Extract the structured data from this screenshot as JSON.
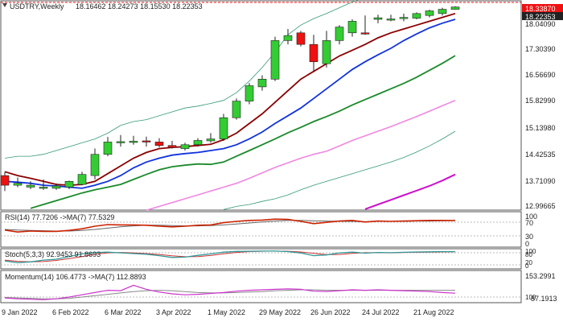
{
  "header": {
    "symbol": "USDTRY,Weekly",
    "ohlc": "18.16462 18.24273 18.15530 18.22353",
    "marker_icon": "triangle-down-icon"
  },
  "price_axis": {
    "ticks": [
      "18.04090",
      "17.30390",
      "16.56690",
      "15.82990",
      "15.13980",
      "14.42535",
      "13.71090",
      "12.99665"
    ],
    "current_price_label": "18.22353",
    "high_level_label": "18.33870"
  },
  "x_axis": {
    "labels": [
      "9 Jan 2022",
      "6 Feb 2022",
      "6 Mar 2022",
      "3 Apr 2022",
      "1 May 2022",
      "29 May 2022",
      "26 Jun 2022",
      "24 Jul 2022",
      "21 Aug 2022"
    ]
  },
  "indicators": {
    "rsi": {
      "label": "RSI(14) 77.7206 ->MA(7) 77.5329",
      "scale": [
        "100",
        "70",
        "30",
        "0"
      ]
    },
    "stoch": {
      "label": "Stoch(5,3,3) 92.9453 91.8693",
      "scale": [
        "100",
        "80",
        "20",
        "0"
      ]
    },
    "momentum": {
      "label": "Momentum(14) 106.4773 ->MA(7) 112.8893",
      "scale": [
        "153.2991",
        "100",
        "87.1913"
      ]
    }
  },
  "colors": {
    "bull": "#33cc33",
    "bear": "#ee1111",
    "wick": "#222222",
    "ma_dark_red": "#8b0000",
    "ma_blue": "#1133dd",
    "ma_green": "#1a8a2a",
    "ma_pink": "#f088e0",
    "ma_magenta": "#cc10cc",
    "band": "#339977",
    "rsi_line": "#cc2200",
    "rsi_ma": "#666666",
    "stoch_k": "#339999",
    "stoch_d": "#cc3333",
    "momentum": "#cc33cc",
    "momentum_ma": "#888888"
  },
  "chart_data": {
    "type": "candlestick",
    "x": [
      "2022-01-02",
      "2022-01-09",
      "2022-01-16",
      "2022-01-23",
      "2022-01-30",
      "2022-02-06",
      "2022-02-13",
      "2022-02-20",
      "2022-02-27",
      "2022-03-06",
      "2022-03-13",
      "2022-03-20",
      "2022-03-27",
      "2022-04-03",
      "2022-04-10",
      "2022-04-17",
      "2022-04-24",
      "2022-05-01",
      "2022-05-08",
      "2022-05-15",
      "2022-05-22",
      "2022-05-29",
      "2022-06-05",
      "2022-06-12",
      "2022-06-19",
      "2022-06-26",
      "2022-07-03",
      "2022-07-10",
      "2022-07-17",
      "2022-07-24",
      "2022-07-31",
      "2022-08-07",
      "2022-08-14",
      "2022-08-21",
      "2022-08-28",
      "2022-09-04"
    ],
    "open": [
      13.85,
      13.6,
      13.55,
      13.55,
      13.52,
      13.55,
      13.62,
      13.85,
      14.4,
      14.7,
      14.72,
      14.75,
      14.72,
      14.63,
      14.55,
      14.65,
      14.75,
      14.8,
      15.35,
      15.78,
      16.15,
      16.35,
      17.35,
      17.55,
      17.25,
      16.75,
      17.35,
      17.55,
      17.55,
      17.9,
      17.9,
      17.92,
      17.93,
      18.0,
      18.05,
      18.16
    ],
    "high": [
      13.95,
      13.8,
      13.7,
      13.75,
      13.65,
      13.72,
      13.95,
      14.55,
      14.85,
      14.9,
      14.88,
      14.86,
      14.82,
      14.75,
      14.7,
      14.82,
      14.95,
      15.45,
      15.85,
      16.25,
      16.45,
      17.45,
      17.65,
      17.6,
      17.5,
      17.6,
      17.75,
      17.9,
      18.0,
      18.02,
      18.02,
      18.05,
      18.08,
      18.15,
      18.2,
      18.24
    ],
    "low": [
      13.45,
      13.55,
      13.5,
      13.48,
      13.48,
      13.5,
      13.6,
      13.75,
      14.35,
      14.6,
      14.65,
      14.6,
      14.58,
      14.55,
      14.5,
      14.6,
      14.7,
      14.75,
      15.3,
      15.7,
      16.05,
      16.3,
      17.25,
      17.2,
      16.55,
      16.65,
      17.25,
      17.45,
      17.5,
      17.8,
      17.85,
      17.85,
      17.9,
      17.95,
      18.0,
      18.15
    ],
    "close": [
      13.6,
      13.65,
      13.6,
      13.55,
      13.58,
      13.7,
      13.88,
      14.4,
      14.72,
      14.73,
      14.74,
      14.72,
      14.63,
      14.58,
      14.65,
      14.76,
      14.8,
      15.35,
      15.78,
      16.18,
      16.35,
      17.35,
      17.48,
      17.25,
      16.8,
      17.35,
      17.7,
      17.85,
      17.52,
      17.94,
      17.91,
      17.95,
      18.05,
      18.12,
      18.16,
      18.22
    ],
    "overlays": {
      "ma_dark_red": [
        13.95,
        13.85,
        13.78,
        13.7,
        13.62,
        13.6,
        13.62,
        13.7,
        13.9,
        14.1,
        14.3,
        14.45,
        14.55,
        14.58,
        14.6,
        14.63,
        14.66,
        14.78,
        14.95,
        15.2,
        15.45,
        15.75,
        16.05,
        16.35,
        16.55,
        16.75,
        16.95,
        17.1,
        17.25,
        17.42,
        17.55,
        17.65,
        17.75,
        17.85,
        17.95,
        18.05
      ],
      "ma_blue": [
        13.7,
        13.68,
        13.65,
        13.6,
        13.58,
        13.55,
        13.52,
        13.6,
        13.7,
        13.85,
        14.05,
        14.2,
        14.3,
        14.38,
        14.42,
        14.45,
        14.5,
        14.55,
        14.65,
        14.8,
        14.98,
        15.2,
        15.4,
        15.6,
        15.85,
        16.1,
        16.35,
        16.6,
        16.8,
        16.98,
        17.15,
        17.35,
        17.52,
        17.68,
        17.8,
        17.9
      ],
      "ma_green": [
        null,
        null,
        13.0,
        13.1,
        13.2,
        13.3,
        13.4,
        13.48,
        13.55,
        13.62,
        13.75,
        13.88,
        14.0,
        14.08,
        14.12,
        14.15,
        14.14,
        14.2,
        14.35,
        14.5,
        14.65,
        14.8,
        14.96,
        15.1,
        15.25,
        15.38,
        15.52,
        15.68,
        15.82,
        15.96,
        16.1,
        16.24,
        16.4,
        16.58,
        16.76,
        16.96
      ],
      "ma_pink": [
        null,
        null,
        null,
        null,
        null,
        null,
        null,
        null,
        null,
        null,
        null,
        12.95,
        13.05,
        13.15,
        13.25,
        13.35,
        13.45,
        13.55,
        13.65,
        13.78,
        13.92,
        14.06,
        14.18,
        14.3,
        14.4,
        14.48,
        14.62,
        14.76,
        14.88,
        15.0,
        15.12,
        15.25,
        15.38,
        15.52,
        15.66,
        15.8
      ],
      "ma_magenta": [
        null,
        null,
        null,
        null,
        null,
        null,
        null,
        null,
        null,
        null,
        null,
        null,
        null,
        null,
        null,
        null,
        null,
        null,
        null,
        null,
        null,
        null,
        null,
        null,
        null,
        null,
        null,
        null,
        12.98,
        13.1,
        13.22,
        13.34,
        13.46,
        13.58,
        13.72,
        13.88
      ],
      "upper_band": [
        14.3,
        14.35,
        14.35,
        14.4,
        14.5,
        14.6,
        14.7,
        14.8,
        14.95,
        15.15,
        15.25,
        15.3,
        15.4,
        15.5,
        15.6,
        15.65,
        15.72,
        15.8,
        16.0,
        16.3,
        16.65,
        17.05,
        17.5,
        17.75,
        17.92,
        18.05,
        18.2,
        18.35,
        18.48,
        18.55,
        18.62,
        18.7,
        18.75,
        18.82,
        18.9,
        18.96
      ],
      "lower_band": [
        null,
        null,
        null,
        null,
        null,
        null,
        null,
        null,
        null,
        null,
        null,
        null,
        null,
        null,
        null,
        null,
        null,
        12.97,
        13.05,
        13.1,
        13.18,
        13.25,
        13.35,
        13.48,
        13.6,
        13.7,
        13.8,
        13.9,
        14.0,
        14.1,
        14.2,
        14.32,
        14.46,
        14.62,
        14.8,
        15.0
      ]
    },
    "rsi": [
      48,
      42,
      45,
      44,
      44,
      47,
      52,
      60,
      65,
      64,
      64,
      63,
      60,
      58,
      60,
      63,
      64,
      71,
      75,
      78,
      79,
      82,
      81,
      75,
      68,
      72,
      76,
      78,
      73,
      76,
      75,
      76,
      77,
      78,
      78,
      77.72
    ],
    "rsi_ma": [
      50,
      48,
      47,
      46,
      45,
      45,
      47,
      50,
      54,
      58,
      61,
      63,
      63,
      62,
      61,
      61,
      62,
      64,
      67,
      70,
      73,
      76,
      78,
      78,
      77,
      76,
      75,
      75,
      74,
      75,
      75,
      75,
      76,
      76,
      77,
      77.53
    ],
    "stoch_k": [
      40,
      30,
      35,
      45,
      50,
      65,
      80,
      88,
      90,
      86,
      82,
      78,
      70,
      60,
      62,
      72,
      80,
      90,
      94,
      95,
      96,
      96,
      93,
      85,
      70,
      74,
      86,
      90,
      84,
      88,
      87,
      89,
      91,
      92,
      93,
      92.95
    ],
    "stoch_d": [
      45,
      38,
      35,
      37,
      43,
      53,
      65,
      78,
      86,
      88,
      86,
      82,
      77,
      69,
      64,
      65,
      71,
      81,
      88,
      93,
      95,
      96,
      95,
      91,
      83,
      76,
      77,
      83,
      87,
      87,
      86,
      88,
      89,
      90,
      91,
      91.87
    ],
    "momentum": [
      96,
      94,
      93,
      92,
      94,
      98,
      103,
      108,
      113,
      112,
      124,
      115,
      109,
      105,
      103,
      104,
      106,
      108,
      111,
      113,
      114,
      115,
      116,
      115,
      111,
      110,
      112,
      114,
      113,
      114,
      113,
      112,
      111,
      110,
      108,
      106.48
    ],
    "momentum_ma": [
      97,
      96,
      95,
      94,
      94,
      95,
      98,
      101,
      104,
      107,
      110,
      112,
      113,
      112,
      110,
      108,
      107,
      107,
      108,
      109,
      110,
      112,
      113,
      114,
      114,
      113,
      113,
      113,
      113,
      113,
      113,
      113,
      113,
      113,
      113,
      112.89
    ],
    "ylim": [
      12.99665,
      18.3387
    ]
  }
}
